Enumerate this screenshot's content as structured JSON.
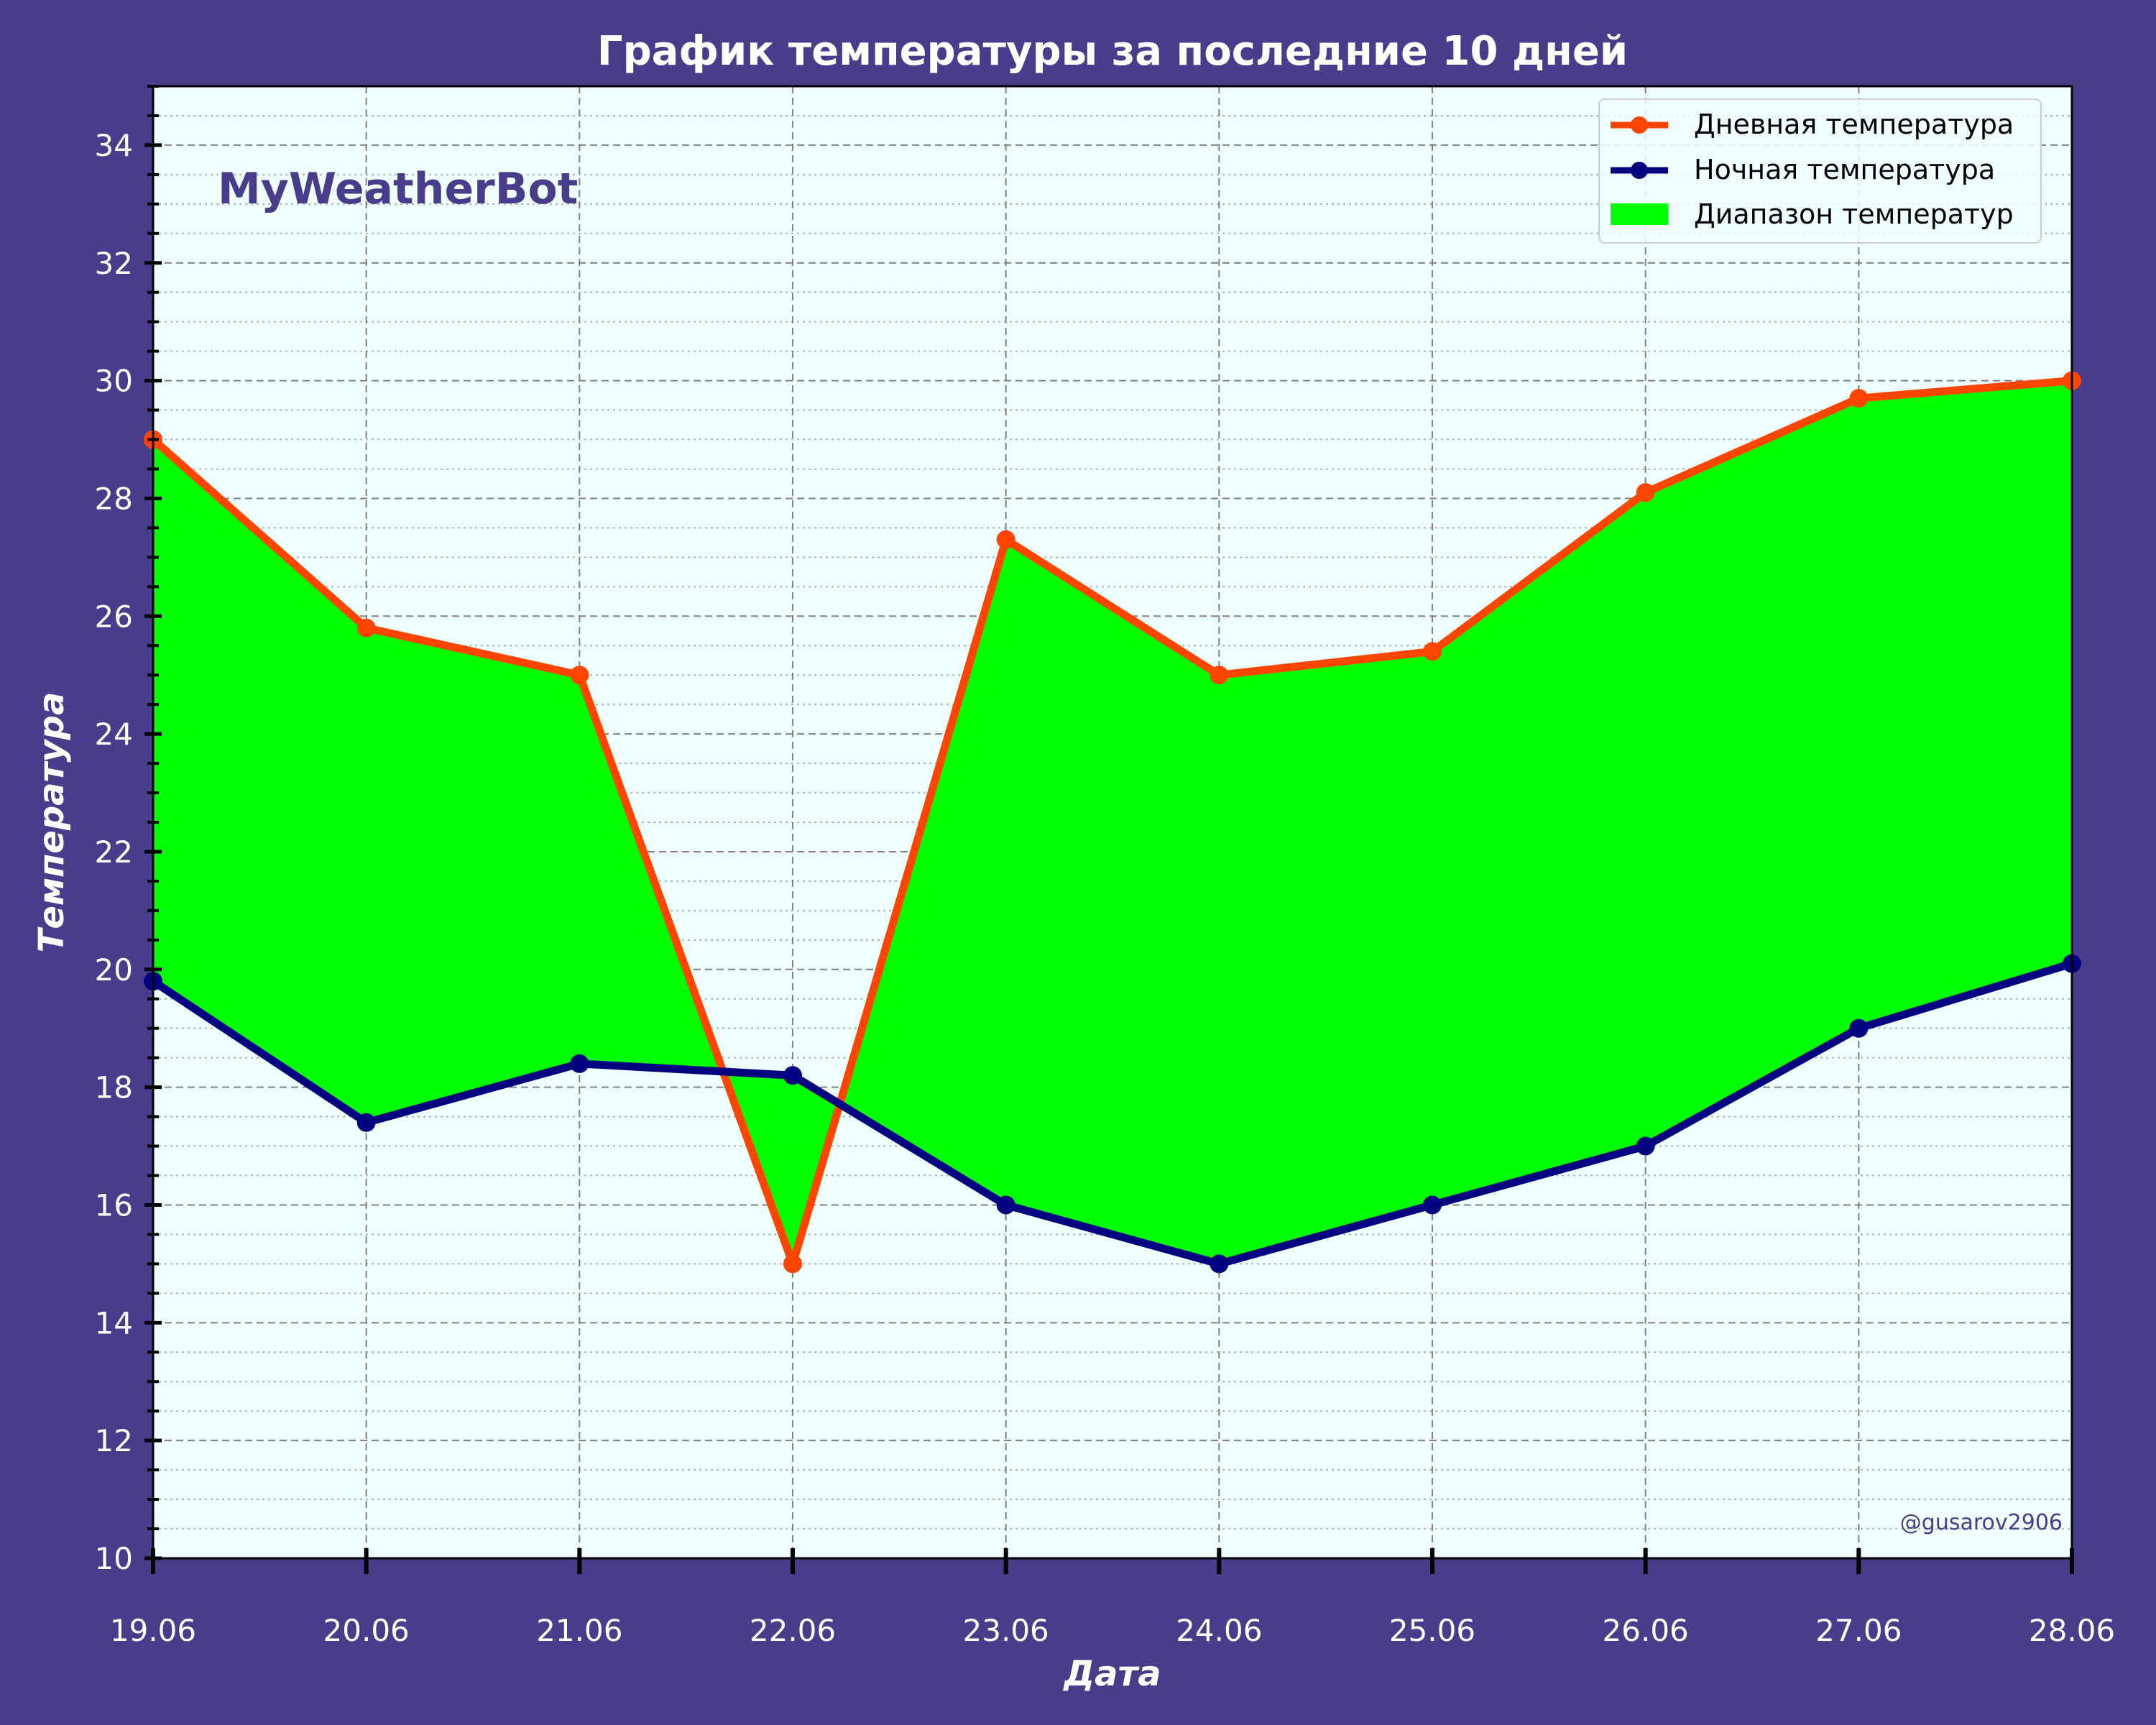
{
  "colors": {
    "page_bg": "#483D8B",
    "plot_bg": "#F0FFFF",
    "day_line": "#FF4500",
    "night_line": "#000080",
    "range_fill": "#00FF00",
    "text": "#FFFFFF",
    "watermark": "#483D8B",
    "grid": "#808080"
  },
  "watermark": "MyWeatherBot",
  "credit": "@gusarov2906",
  "chart_data": {
    "type": "line",
    "title": "График температуры за последние 10 дней",
    "xlabel": "Дата",
    "ylabel": "Температура",
    "categories": [
      "19.06",
      "20.06",
      "21.06",
      "22.06",
      "23.06",
      "24.06",
      "25.06",
      "26.06",
      "27.06",
      "28.06"
    ],
    "ylim": [
      10,
      35
    ],
    "yticks": [
      10,
      12,
      14,
      16,
      18,
      20,
      22,
      24,
      26,
      28,
      30,
      32,
      34
    ],
    "grid": true,
    "legend_position": "top-right",
    "series": [
      {
        "name": "Дневная температура",
        "values": [
          29.0,
          25.8,
          25.0,
          15.0,
          27.3,
          25.0,
          25.4,
          28.1,
          29.7,
          30.0
        ]
      },
      {
        "name": "Ночная температура",
        "values": [
          19.8,
          17.4,
          18.4,
          18.2,
          16.0,
          15.0,
          16.0,
          17.0,
          19.0,
          20.1
        ]
      }
    ],
    "fill_between": {
      "name": "Диапазон температур"
    }
  }
}
